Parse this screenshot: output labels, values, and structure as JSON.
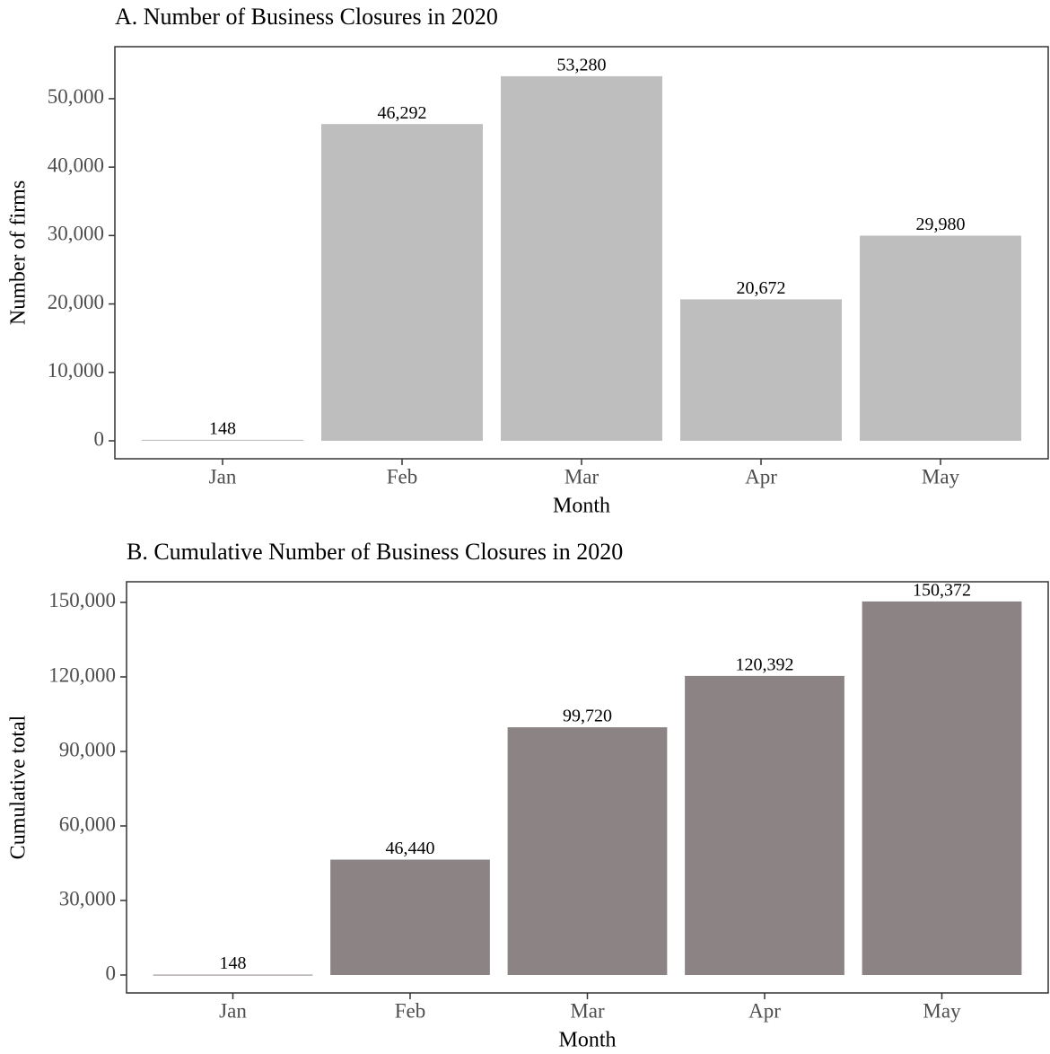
{
  "chart_data": [
    {
      "type": "bar",
      "title": "A. Number of Business Closures in 2020",
      "x_label": "Month",
      "y_label": "Number of firms",
      "categories": [
        "Jan",
        "Feb",
        "Mar",
        "Apr",
        "May"
      ],
      "values": [
        148,
        46292,
        53280,
        20672,
        29980
      ],
      "value_labels": [
        "148",
        "46,292",
        "53,280",
        "20,672",
        "29,980"
      ],
      "color": "#bebebe",
      "ylim": [
        -2625,
        57600
      ],
      "yticks": [
        0,
        {
          "value": 10000,
          "label": "10,000"
        },
        {
          "value": 20000,
          "label": "20,000"
        },
        {
          "value": 30000,
          "label": "30,000"
        },
        {
          "value": 40000,
          "label": "40,000"
        },
        {
          "value": 50000,
          "label": "50,000"
        }
      ],
      "grid": false
    },
    {
      "type": "bar",
      "title": "B. Cumulative Number of Business Closures in 2020",
      "x_label": "Month",
      "y_label": "Cumulative total",
      "categories": [
        "Jan",
        "Feb",
        "Mar",
        "Apr",
        "May"
      ],
      "values": [
        148,
        46440,
        99720,
        120392,
        150372
      ],
      "value_labels": [
        "148",
        "46,440",
        "99,720",
        "120,392",
        "150,372"
      ],
      "color": "#8c8385",
      "ylim": [
        -7229,
        158300
      ],
      "yticks": [
        0,
        {
          "value": 30000,
          "label": "30,000"
        },
        {
          "value": 60000,
          "label": "60,000"
        },
        {
          "value": 90000,
          "label": "90,000"
        },
        {
          "value": 120000,
          "label": "120,000"
        },
        {
          "value": 150000,
          "label": "150,000"
        }
      ],
      "grid": false
    }
  ]
}
